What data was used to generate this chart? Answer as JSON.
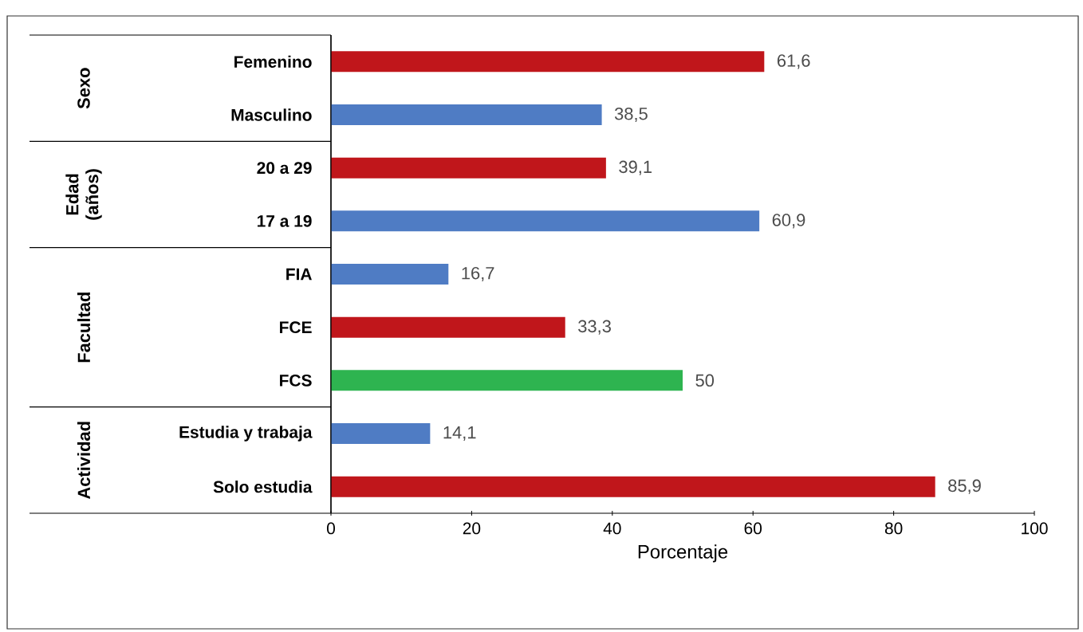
{
  "chart_data": {
    "type": "bar",
    "orientation": "horizontal",
    "xlabel": "Porcentaje",
    "categories": [
      "Femenino",
      "Masculino",
      "20 a 29",
      "17 a 19",
      "FIA",
      "FCE",
      "FCS",
      "Estudia y trabaja",
      "Solo estudia"
    ],
    "values": [
      61.6,
      38.5,
      39.1,
      60.9,
      16.7,
      33.3,
      50,
      14.1,
      85.9
    ],
    "value_labels": [
      "61,6",
      "38,5",
      "39,1",
      "60,9",
      "16,7",
      "33,3",
      "50",
      "14,1",
      "85,9"
    ],
    "colors": [
      "#c0161b",
      "#4f7cc4",
      "#c0161b",
      "#4f7cc4",
      "#4f7cc4",
      "#c0161b",
      "#2eb450",
      "#4f7cc4",
      "#c0161b"
    ],
    "xlim": [
      0,
      100
    ],
    "xticks": [
      0,
      20,
      40,
      60,
      80,
      100
    ],
    "annotations": [
      "Sexo",
      "Edad (años)",
      "Facultad",
      "Actividad"
    ],
    "grid": false
  }
}
